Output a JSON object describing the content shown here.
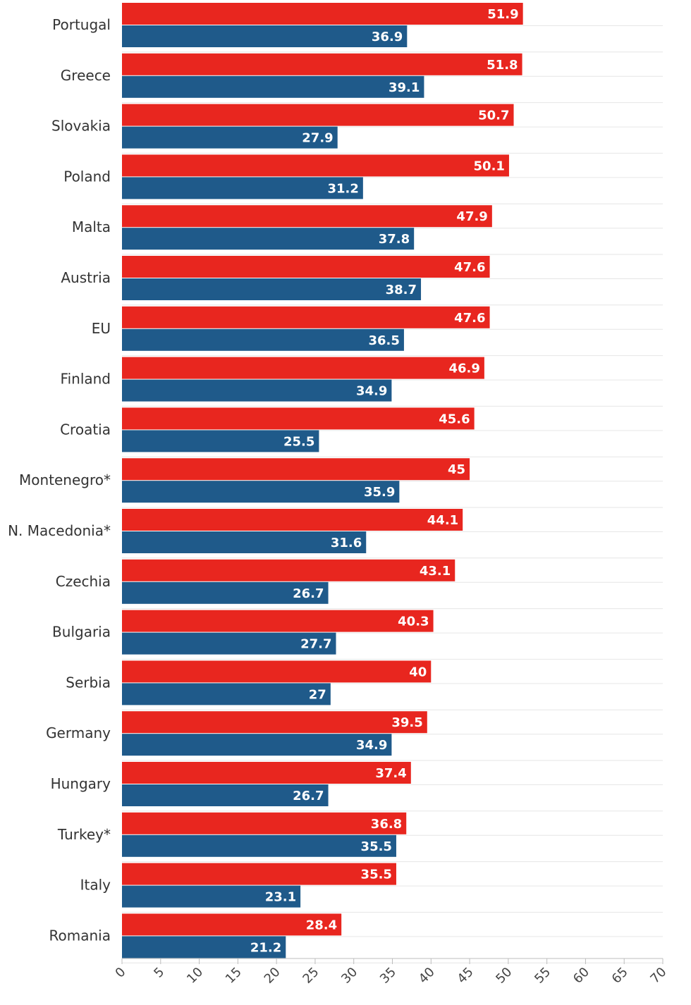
{
  "chart_data": {
    "type": "bar",
    "orientation": "horizontal",
    "title": "",
    "xlabel": "",
    "ylabel": "",
    "xlim": [
      0,
      70
    ],
    "x_ticks": [
      0,
      5,
      10,
      15,
      20,
      25,
      30,
      35,
      40,
      45,
      50,
      55,
      60,
      65,
      70
    ],
    "x_tick_labels": [
      "0",
      "5",
      "10",
      "15",
      "20",
      "25",
      "30",
      "35",
      "40",
      "45",
      "50",
      "55",
      "60",
      "65",
      "70"
    ],
    "grid": true,
    "legend": "none",
    "categories": [
      "Portugal",
      "Greece",
      "Slovakia",
      "Poland",
      "Malta",
      "Austria",
      "EU",
      "Finland",
      "Croatia",
      "Montenegro*",
      "N. Macedonia*",
      "Czechia",
      "Bulgaria",
      "Serbia",
      "Germany",
      "Hungary",
      "Turkey*",
      "Italy",
      "Romania"
    ],
    "series": [
      {
        "name": "red",
        "color": "#e8261f",
        "values": [
          51.9,
          51.8,
          50.7,
          50.1,
          47.9,
          47.6,
          47.6,
          46.9,
          45.6,
          45,
          44.1,
          43.1,
          40.3,
          40,
          39.5,
          37.4,
          36.8,
          35.5,
          28.4
        ],
        "value_labels": [
          "51.9",
          "51.8",
          "50.7",
          "50.1",
          "47.9",
          "47.6",
          "47.6",
          "46.9",
          "45.6",
          "45",
          "44.1",
          "43.1",
          "40.3",
          "40",
          "39.5",
          "37.4",
          "36.8",
          "35.5",
          "28.4"
        ]
      },
      {
        "name": "blue",
        "color": "#1f5a8a",
        "values": [
          36.9,
          39.1,
          27.9,
          31.2,
          37.8,
          38.7,
          36.5,
          34.9,
          25.5,
          35.9,
          31.6,
          26.7,
          27.7,
          27,
          34.9,
          26.7,
          35.5,
          23.1,
          21.2
        ],
        "value_labels": [
          "36.9",
          "39.1",
          "27.9",
          "31.2",
          "37.8",
          "38.7",
          "36.5",
          "34.9",
          "25.5",
          "35.9",
          "31.6",
          "26.7",
          "27.7",
          "27",
          "34.9",
          "26.7",
          "35.5",
          "23.1",
          "21.2"
        ]
      }
    ]
  },
  "colors": {
    "grid": "#e6e6e6",
    "axis": "#bdbdbd",
    "category_text": "#333333",
    "tick_text": "#444444",
    "value_text": "#ffffff"
  }
}
